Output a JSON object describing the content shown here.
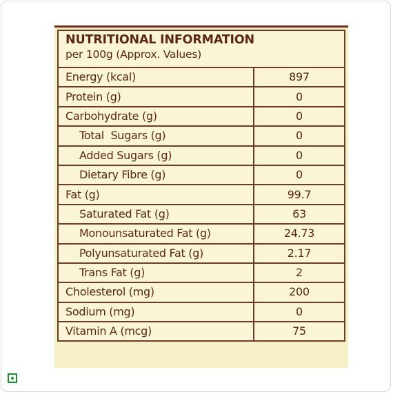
{
  "panel": {
    "title": "NUTRITIONAL INFORMATION",
    "subtitle": "per 100g (Approx. Values)"
  },
  "rows": [
    {
      "label": "Energy (kcal)",
      "value": "897"
    },
    {
      "label": "Protein (g)",
      "value": "0"
    },
    {
      "label": "Carbohydrate (g)",
      "value": "0"
    },
    {
      "label": "Total  Sugars (g)",
      "value": "0"
    },
    {
      "label": "Added Sugars (g)",
      "value": "0"
    },
    {
      "label": "Dietary Fibre (g)",
      "value": "0"
    },
    {
      "label": "Fat (g)",
      "value": "99.7"
    },
    {
      "label": "Saturated Fat (g)",
      "value": "63"
    },
    {
      "label": "Monounsaturated Fat (g)",
      "value": "24.73"
    },
    {
      "label": "Polyunsaturated Fat (g)",
      "value": "2.17"
    },
    {
      "label": "Trans Fat (g)",
      "value": "2"
    },
    {
      "label": "Cholesterol (mg)",
      "value": "200"
    },
    {
      "label": "Sodium (mg)",
      "value": "0"
    },
    {
      "label": "Vitamin A (mcg)",
      "value": "75"
    }
  ],
  "colors": {
    "panel_background": "#f6f0c6",
    "text": "#5a2618",
    "border": "#6e3a2a",
    "veg_mark": "#1e8c3a"
  },
  "icons": {
    "veg_mark": "veg-mark-icon"
  }
}
